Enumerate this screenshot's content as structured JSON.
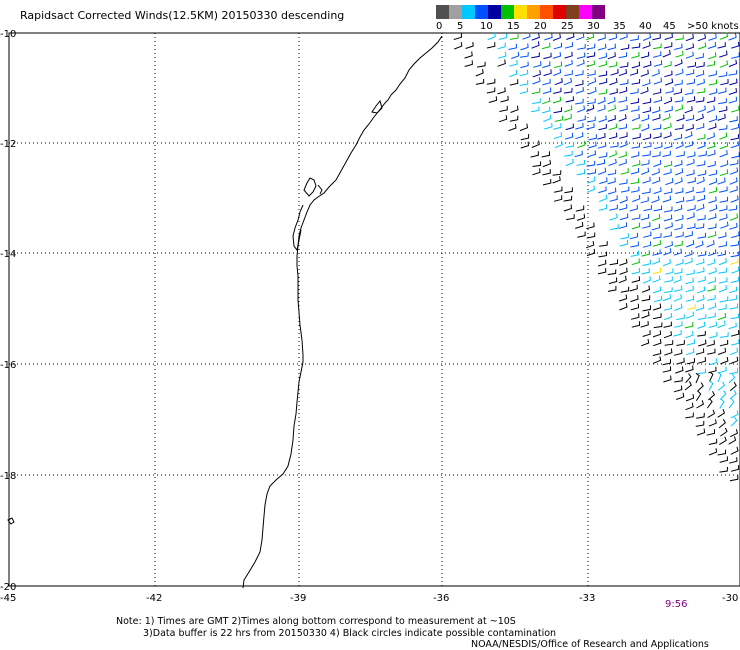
{
  "title": "Rapidsact Corrected Winds(12.5KM) 20150330 descending",
  "legend": {
    "swatches": [
      "#505050",
      "#a0a0a0",
      "#00c8ff",
      "#0050ff",
      "#0000a0",
      "#00c000",
      "#ffe000",
      "#ffa000",
      "#ff5000",
      "#e00000",
      "#804020",
      "#ff00ff",
      "#800080"
    ],
    "labels": [
      "0",
      "5",
      "10",
      "15",
      "20",
      "25",
      "30",
      "35",
      "40",
      "45",
      ">50 knots"
    ]
  },
  "axes": {
    "y_ticks": [
      "-10",
      "-12",
      "-14",
      "-16",
      "-18",
      "-20"
    ],
    "x_ticks": [
      "-45",
      "-42",
      "-39",
      "-36",
      "-33",
      "-30"
    ]
  },
  "time_label": "9:56",
  "notes": {
    "line1": "Note: 1) Times are GMT 2)Times along bottom correspond to measurement at ~10S",
    "line2": "3)Data buffer is 22 hrs from 20150330 4) Black circles indicate possible contamination",
    "line3": "NOAA/NESDIS/Office of Research and Applications"
  },
  "map": {
    "lat_range": [
      -20,
      -10
    ],
    "lon_range": [
      -45,
      -30
    ],
    "grid": "dotted",
    "swath_colors": {
      "low": "#000000",
      "light": "#00c8ff",
      "moderate": "#0050ff",
      "strong": "#0000a0",
      "green": "#00c000",
      "yellow": "#ffe000"
    }
  }
}
